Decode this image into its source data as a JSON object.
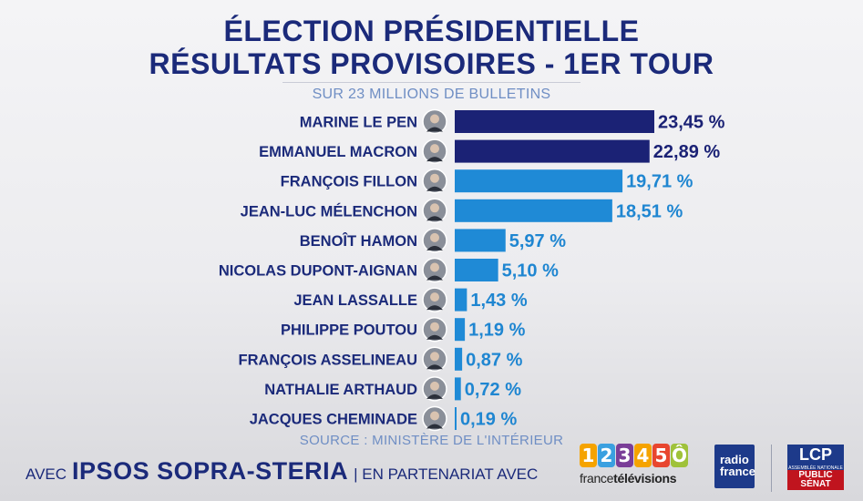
{
  "header": {
    "title_line1": "ÉLECTION PRÉSIDENTIELLE",
    "title_line2": "RÉSULTATS PROVISOIRES - 1ER TOUR",
    "subtitle": "SUR 23 MILLIONS DE BULLETINS"
  },
  "source": "SOURCE : MINISTÈRE DE L'INTÉRIEUR",
  "footer": {
    "lead": "AVEC",
    "brand": "IPSOS SOPRA-STERIA",
    "partner": "| EN PARTENARIAT AVEC",
    "ft_digits": [
      "1",
      "2",
      "3",
      "4",
      "5",
      "Ô"
    ],
    "ft_word_a": "france",
    "ft_word_b": "télévisions",
    "rf_line1": "radio",
    "rf_line2": "france",
    "lcp_top": "LCP",
    "lcp_mid": "ASSEMBLÉE NATIONALE",
    "lcp_bot1": "PUBLIC",
    "lcp_bot2": "SÉNAT"
  },
  "colors": {
    "dark_bar": "#1b2275",
    "light_bar": "#1f8ad6",
    "dark_text": "#1b2275",
    "light_text": "#1f86d1",
    "ft_digit_colors": [
      "#f5a300",
      "#3aa0e0",
      "#7a3e98",
      "#f5a300",
      "#e8462f",
      "#9fc23a"
    ]
  },
  "chart_data": {
    "type": "bar",
    "orientation": "horizontal",
    "xlim": [
      0,
      23.45
    ],
    "categories": [
      "MARINE LE PEN",
      "EMMANUEL MACRON",
      "FRANÇOIS FILLON",
      "JEAN-LUC MÉLENCHON",
      "BENOÎT HAMON",
      "NICOLAS DUPONT-AIGNAN",
      "JEAN LASSALLE",
      "PHILIPPE POUTOU",
      "FRANÇOIS ASSELINEAU",
      "NATHALIE ARTHAUD",
      "JACQUES CHEMINADE"
    ],
    "values": [
      23.45,
      22.89,
      19.71,
      18.51,
      5.97,
      5.1,
      1.43,
      1.19,
      0.87,
      0.72,
      0.19
    ],
    "value_labels": [
      "23,45 %",
      "22,89 %",
      "19,71 %",
      "18,51 %",
      "5,97 %",
      "5,10 %",
      "1,43 %",
      "1,19 %",
      "0,87 %",
      "0,72 %",
      "0,19 %"
    ],
    "qualified": [
      true,
      true,
      false,
      false,
      false,
      false,
      false,
      false,
      false,
      false,
      false
    ]
  }
}
